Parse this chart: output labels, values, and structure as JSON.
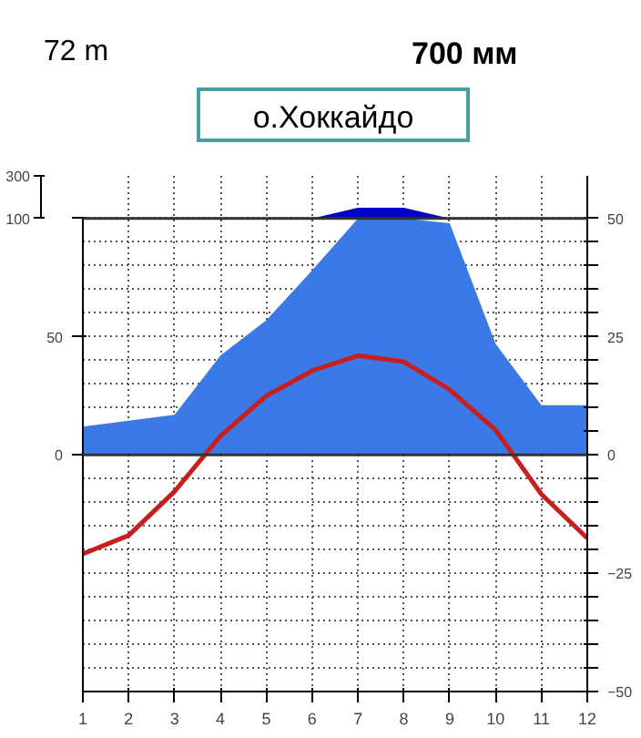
{
  "chart_data": {
    "type": "area",
    "title": "о.Хоккайдо",
    "annotations": [
      "72  m",
      "700 мм"
    ],
    "x": [
      1,
      2,
      3,
      4,
      5,
      6,
      7,
      8,
      9,
      10,
      11,
      12
    ],
    "xlim": [
      1,
      12
    ],
    "xticks": [
      1,
      2,
      3,
      4,
      5,
      6,
      7,
      8,
      9,
      10,
      11,
      12
    ],
    "ylim": [
      -100,
      100
    ],
    "yticks": [
      0,
      50,
      {
        "value": 100,
        "label": null
      }
    ],
    "y3lim": [
      100,
      300
    ],
    "y3ticks": [
      100,
      300
    ],
    "y2lim": [
      -50,
      50
    ],
    "y2ticks": [
      -50,
      {
        "value": -45,
        "label": null
      },
      {
        "value": -40,
        "label": null
      },
      {
        "value": -35,
        "label": null
      },
      {
        "value": -30,
        "label": null
      },
      -25,
      {
        "value": -20,
        "label": null
      },
      {
        "value": -15,
        "label": null
      },
      {
        "value": -10,
        "label": null
      },
      {
        "value": -5,
        "label": null
      },
      0,
      {
        "value": 5,
        "label": null
      },
      {
        "value": 10,
        "label": null
      },
      {
        "value": 15,
        "label": null
      },
      {
        "value": 20,
        "label": null
      },
      25,
      {
        "value": 30,
        "label": null
      },
      {
        "value": 35,
        "label": null
      },
      {
        "value": 40,
        "label": null
      },
      {
        "value": 45,
        "label": null
      },
      50
    ],
    "grid": true,
    "marker": "none",
    "series": [
      {
        "color": "#3b7ae6",
        "values": [
          12,
          14.5,
          17,
          42,
          57,
          78,
          100,
          100,
          98,
          47,
          21,
          21
        ]
      },
      {
        "axis": "y3",
        "color": "#0000c8",
        "values": [
          null,
          null,
          null,
          null,
          null,
          100,
          150,
          150,
          100,
          null,
          null,
          null
        ]
      },
      {
        "type": "line",
        "axis": "y2",
        "color": "#c81e1e",
        "line_style": "solid",
        "values": [
          -20.9,
          -17,
          -7.7,
          4,
          12.5,
          17.8,
          21,
          19.7,
          13.8,
          5.3,
          -8.3,
          -17.6
        ]
      }
    ]
  }
}
